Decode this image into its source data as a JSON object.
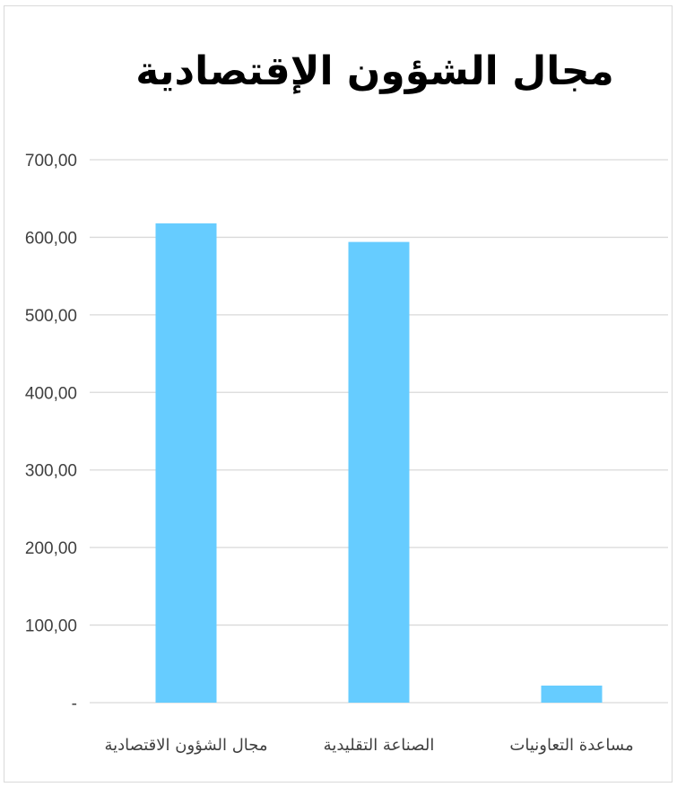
{
  "chart_data": {
    "type": "bar",
    "title": "مجال الشؤون الإقتصادية",
    "xlabel": "",
    "ylabel": "",
    "categories": [
      "مجال الشؤون الاقتصادية",
      "الصناعة التقليدية",
      "مساعدة التعاونيات"
    ],
    "values": [
      618,
      594,
      22
    ],
    "ylim": [
      0,
      700
    ],
    "y_ticks": [
      0,
      100,
      200,
      300,
      400,
      500,
      600,
      700
    ],
    "y_tick_labels": [
      "-",
      "100,00",
      "200,00",
      "300,00",
      "400,00",
      "500,00",
      "600,00",
      "700,00"
    ],
    "grid": true,
    "legend": "none",
    "bar_color": "#66ccff",
    "grid_color": "#d9d9d9"
  }
}
